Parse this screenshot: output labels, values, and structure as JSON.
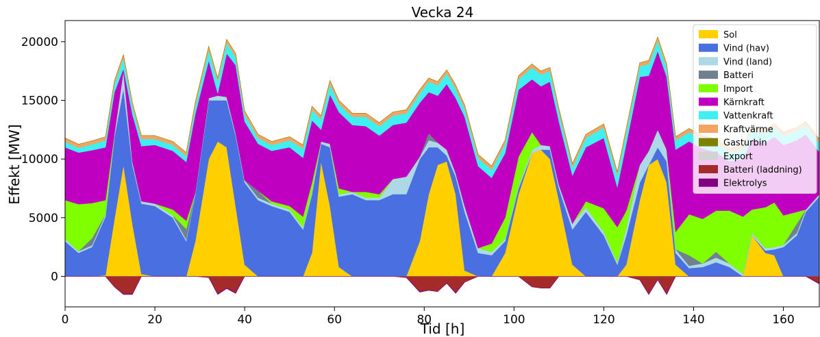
{
  "chart_data": {
    "type": "area",
    "title": "Vecka 24",
    "xlabel": "Tid [h]",
    "ylabel": "Effekt [MW]",
    "xlim": [
      0,
      168
    ],
    "ylim": [
      -2600,
      21800
    ],
    "xticks": [
      0,
      20,
      40,
      60,
      80,
      100,
      120,
      140,
      160
    ],
    "yticks": [
      0,
      5000,
      10000,
      15000,
      20000
    ],
    "legend_position": "upper right",
    "x": [
      0,
      3,
      6,
      9,
      11,
      13,
      15,
      17,
      20,
      24,
      27,
      29,
      32,
      34,
      36,
      38,
      40,
      43,
      46,
      50,
      53,
      55,
      57,
      59,
      61,
      64,
      67,
      70,
      73,
      76,
      79,
      81,
      83,
      85,
      87,
      89,
      92,
      95,
      98,
      101,
      104,
      106,
      108,
      110,
      113,
      116,
      120,
      123,
      125,
      128,
      130,
      132,
      134,
      136,
      139,
      142,
      145,
      148,
      151,
      153,
      156,
      158,
      160,
      163,
      165,
      168
    ],
    "series": [
      {
        "name": "Sol",
        "color": "#FFD000",
        "stack": "pos",
        "values": [
          0,
          0,
          0,
          100,
          4900,
          9500,
          4500,
          200,
          0,
          0,
          0,
          3000,
          10000,
          11500,
          11000,
          6000,
          1000,
          0,
          0,
          0,
          0,
          2000,
          9800,
          6000,
          800,
          0,
          0,
          0,
          0,
          0,
          3000,
          7000,
          9500,
          9800,
          7000,
          500,
          0,
          0,
          2000,
          7000,
          10500,
          10800,
          10000,
          6500,
          1000,
          0,
          0,
          0,
          1000,
          6500,
          9500,
          10000,
          8000,
          1000,
          0,
          0,
          0,
          0,
          0,
          3500,
          2000,
          1800,
          0,
          0,
          0,
          0
        ]
      },
      {
        "name": "Vind (hav)",
        "color": "#4A6FE0",
        "stack": "pos",
        "values": [
          3000,
          2000,
          2500,
          5000,
          7000,
          6500,
          5000,
          6000,
          6000,
          5000,
          3000,
          4000,
          5000,
          3500,
          4000,
          6000,
          7000,
          6500,
          6000,
          5500,
          4000,
          5000,
          1500,
          5000,
          6000,
          7000,
          6500,
          6500,
          7000,
          7000,
          7000,
          4000,
          1500,
          500,
          1500,
          5000,
          2000,
          1800,
          1000,
          500,
          0,
          0,
          800,
          1000,
          3000,
          5500,
          3500,
          1000,
          2500,
          1500,
          0,
          1000,
          1800,
          1000,
          700,
          800,
          1200,
          800,
          0,
          0,
          200,
          500,
          2500,
          3500,
          5500,
          6800
        ]
      },
      {
        "name": "Vind (land)",
        "color": "#ADD8E6",
        "stack": "pos",
        "values": [
          200,
          150,
          150,
          200,
          300,
          1500,
          300,
          200,
          200,
          200,
          150,
          150,
          200,
          400,
          300,
          200,
          200,
          200,
          200,
          200,
          200,
          200,
          200,
          300,
          200,
          200,
          200,
          200,
          1300,
          1500,
          200,
          600,
          400,
          500,
          300,
          500,
          400,
          300,
          200,
          200,
          300,
          400,
          300,
          300,
          500,
          400,
          300,
          200,
          600,
          1500,
          1200,
          1500,
          1000,
          300,
          200,
          300,
          400,
          300,
          200,
          200,
          200,
          200,
          200,
          200,
          200,
          200
        ]
      },
      {
        "name": "Batteri",
        "color": "#708090",
        "stack": "pos",
        "values": [
          0,
          0,
          600,
          0,
          0,
          0,
          0,
          0,
          0,
          0,
          900,
          0,
          0,
          0,
          0,
          0,
          0,
          600,
          0,
          0,
          0,
          0,
          0,
          0,
          0,
          0,
          0,
          0,
          0,
          0,
          0,
          600,
          0,
          0,
          0,
          0,
          0,
          0,
          0,
          0,
          0,
          0,
          0,
          0,
          0,
          0,
          0,
          0,
          0,
          0,
          0,
          0,
          0,
          0,
          900,
          0,
          500,
          0,
          0,
          0,
          0,
          0,
          0,
          800,
          0,
          0
        ]
      },
      {
        "name": "Import",
        "color": "#7FFF00",
        "stack": "pos",
        "values": [
          3300,
          4000,
          3000,
          1200,
          0,
          0,
          0,
          0,
          0,
          500,
          700,
          0,
          0,
          0,
          0,
          0,
          0,
          0,
          200,
          300,
          900,
          800,
          0,
          0,
          500,
          0,
          500,
          300,
          0,
          0,
          0,
          0,
          0,
          0,
          0,
          0,
          0,
          700,
          1800,
          2500,
          1500,
          0,
          0,
          0,
          0,
          500,
          2000,
          3000,
          1500,
          0,
          0,
          0,
          0,
          1500,
          3500,
          3800,
          3500,
          4500,
          4900,
          2000,
          3500,
          3800,
          2500,
          1000,
          0,
          0
        ]
      },
      {
        "name": "Kärnkraft",
        "color": "#C000C0",
        "stack": "pos",
        "values": [
          4500,
          4400,
          4500,
          4500,
          3500,
          200,
          4000,
          4700,
          5000,
          5000,
          5000,
          6700,
          3200,
          200,
          3700,
          5800,
          5000,
          4000,
          4300,
          5000,
          5000,
          5300,
          1000,
          4200,
          6500,
          5700,
          5600,
          5000,
          4600,
          4600,
          4600,
          3500,
          4000,
          5600,
          6400,
          7600,
          7000,
          5600,
          5500,
          5700,
          4500,
          5000,
          5500,
          5400,
          4100,
          4600,
          6000,
          3400,
          5700,
          7500,
          6400,
          6700,
          6200,
          7000,
          6200,
          6000,
          5000,
          4200,
          4900,
          6000,
          5500,
          5600,
          6000,
          6100,
          6400,
          3600
        ]
      },
      {
        "name": "Vattenkraft",
        "color": "#40F0F0",
        "stack": "pos",
        "values": [
          500,
          400,
          500,
          600,
          700,
          900,
          700,
          600,
          500,
          500,
          500,
          700,
          900,
          1000,
          900,
          700,
          600,
          500,
          500,
          600,
          800,
          900,
          900,
          900,
          700,
          700,
          800,
          800,
          800,
          800,
          800,
          900,
          900,
          900,
          800,
          700,
          700,
          700,
          800,
          900,
          1000,
          1000,
          900,
          800,
          700,
          800,
          900,
          1000,
          1000,
          900,
          1000,
          900,
          800,
          800,
          800,
          800,
          800,
          800,
          800,
          800,
          800,
          800,
          800,
          800,
          800,
          800
        ]
      },
      {
        "name": "Kraftvärme",
        "color": "#F4A460",
        "stack": "pos",
        "values": [
          300,
          300,
          300,
          300,
          300,
          300,
          300,
          300,
          300,
          300,
          300,
          300,
          300,
          300,
          300,
          300,
          300,
          300,
          300,
          300,
          300,
          300,
          300,
          300,
          300,
          300,
          300,
          300,
          300,
          300,
          300,
          300,
          300,
          300,
          300,
          300,
          300,
          300,
          300,
          300,
          300,
          300,
          300,
          300,
          300,
          300,
          300,
          300,
          300,
          300,
          300,
          300,
          300,
          300,
          300,
          300,
          300,
          300,
          300,
          300,
          300,
          300,
          300,
          300,
          300,
          300
        ]
      },
      {
        "name": "Gasturbin",
        "color": "#808000",
        "stack": "pos",
        "values": [
          0,
          0,
          0,
          0,
          0,
          0,
          0,
          0,
          0,
          0,
          0,
          0,
          0,
          0,
          0,
          0,
          0,
          0,
          0,
          0,
          0,
          0,
          0,
          0,
          0,
          0,
          0,
          0,
          0,
          0,
          0,
          0,
          0,
          0,
          0,
          0,
          0,
          0,
          0,
          0,
          0,
          0,
          0,
          0,
          0,
          0,
          0,
          0,
          0,
          0,
          0,
          0,
          0,
          0,
          0,
          0,
          0,
          0,
          0,
          0,
          0,
          0,
          0,
          0,
          0,
          0
        ]
      },
      {
        "name": "Export",
        "color": "#D3D3D3",
        "stack": "neg",
        "values": [
          0,
          0,
          0,
          0,
          0,
          0,
          0,
          0,
          0,
          0,
          0,
          0,
          0,
          0,
          0,
          0,
          0,
          0,
          0,
          0,
          0,
          0,
          0,
          0,
          0,
          0,
          0,
          0,
          0,
          0,
          0,
          0,
          0,
          0,
          0,
          0,
          0,
          0,
          0,
          0,
          0,
          0,
          0,
          0,
          0,
          0,
          0,
          0,
          0,
          0,
          0,
          0,
          0,
          0,
          0,
          0,
          0,
          0,
          0,
          0,
          0,
          0,
          0,
          0,
          0,
          0
        ]
      },
      {
        "name": "Batteri (laddning)",
        "color": "#A52A2A",
        "stack": "neg",
        "values": [
          0,
          0,
          0,
          0,
          -900,
          -1500,
          -1500,
          0,
          0,
          0,
          0,
          0,
          -100,
          -1500,
          -1000,
          -1400,
          0,
          0,
          0,
          0,
          0,
          0,
          0,
          0,
          0,
          0,
          0,
          0,
          0,
          -100,
          -1300,
          -1200,
          -1300,
          -600,
          -1400,
          -500,
          0,
          0,
          0,
          0,
          -900,
          -1000,
          -1000,
          0,
          0,
          0,
          0,
          0,
          0,
          -300,
          -1500,
          -300,
          -1500,
          0,
          0,
          0,
          0,
          0,
          0,
          0,
          0,
          0,
          0,
          0,
          0,
          -600
        ]
      },
      {
        "name": "Elektrolys",
        "color": "#800080",
        "stack": "neg",
        "values": [
          0,
          0,
          0,
          0,
          0,
          -50,
          -50,
          0,
          0,
          0,
          0,
          0,
          0,
          -50,
          -50,
          -50,
          0,
          0,
          0,
          0,
          0,
          0,
          0,
          0,
          0,
          0,
          0,
          0,
          0,
          0,
          -50,
          0,
          0,
          0,
          -50,
          0,
          0,
          0,
          0,
          0,
          0,
          0,
          0,
          0,
          0,
          0,
          0,
          0,
          0,
          0,
          -50,
          0,
          -50,
          0,
          0,
          0,
          0,
          0,
          0,
          0,
          0,
          0,
          0,
          0,
          0,
          -50
        ]
      }
    ]
  }
}
